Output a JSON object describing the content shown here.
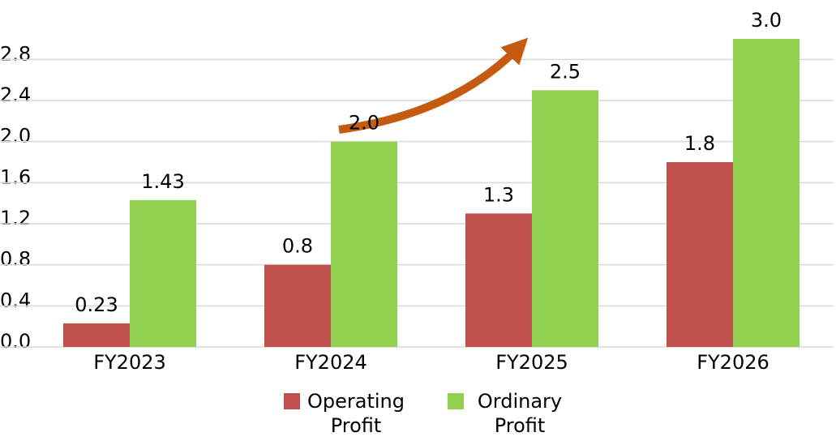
{
  "chart_data": {
    "type": "bar",
    "categories": [
      "FY2023",
      "FY2024",
      "FY2025",
      "FY2026"
    ],
    "series": [
      {
        "name": "Operating Profit",
        "color": "#c0504d",
        "values": [
          0.23,
          0.8,
          1.3,
          1.8
        ],
        "value_labels": [
          "0.23",
          "0.8",
          "1.3",
          "1.8"
        ]
      },
      {
        "name": "Ordinary Profit",
        "color": "#92d050",
        "values": [
          1.43,
          2.0,
          2.5,
          3.0
        ],
        "value_labels": [
          "1.43",
          "2.0",
          "2.5",
          "3.0"
        ]
      }
    ],
    "ylim": [
      0,
      3.0
    ],
    "yticks": [
      {
        "value": 0,
        "label": "0.0"
      },
      0.4,
      0.8,
      1.2,
      1.6,
      {
        "value": 2,
        "label": "2.0"
      },
      2.4,
      2.8
    ],
    "grid": true
  }
}
